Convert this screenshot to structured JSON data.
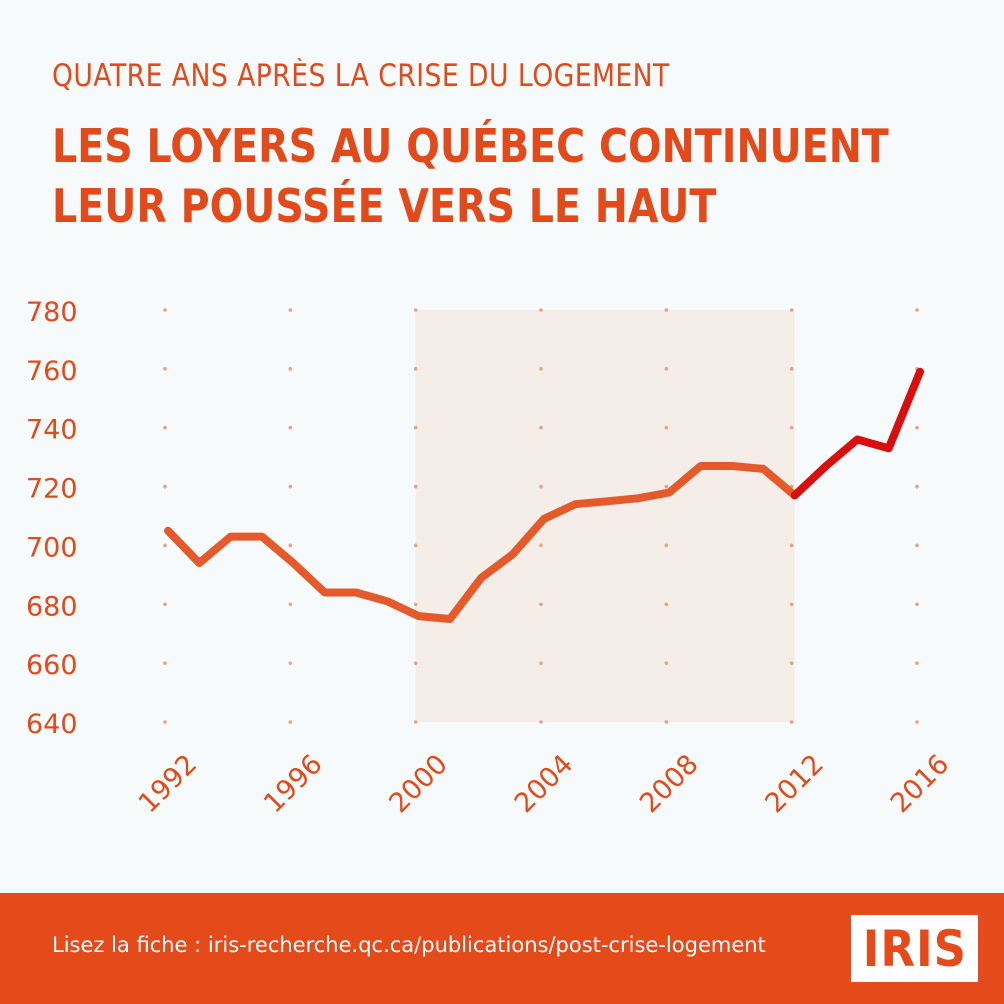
{
  "header": {
    "subtitle": "QUATRE ANS APRÈS LA CRISE DU LOGEMENT",
    "title_line1": "LES LOYERS AU QUÉBEC CONTINUENT",
    "title_line2": "LEUR POUSSÉE VERS LE HAUT"
  },
  "colors": {
    "accent": "#e24a1b",
    "line_main": "#e55a2b",
    "line_recent": "#d90f0f",
    "shaded_band": "#f4ede8",
    "footer_bg": "#e44a1a"
  },
  "chart_data": {
    "type": "line",
    "x_ticks": [
      "1992",
      "1996",
      "2000",
      "2004",
      "2008",
      "2012",
      "2016"
    ],
    "y_ticks": [
      "780",
      "760",
      "740",
      "720",
      "700",
      "680",
      "660",
      "640"
    ],
    "ylim": [
      640,
      780
    ],
    "xlim": [
      1992,
      2016
    ],
    "grid": "dotted",
    "shaded_region": [
      2000,
      2012
    ],
    "series": [
      {
        "x": [
          1992,
          1993,
          1994,
          1995,
          1996,
          1997,
          1998,
          1999,
          2000,
          2001,
          2002,
          2003,
          2004,
          2005,
          2006,
          2007,
          2008,
          2009,
          2010,
          2011,
          2012
        ],
        "values": [
          705,
          694,
          703,
          703,
          694,
          684,
          684,
          681,
          676,
          675,
          689,
          697,
          709,
          714,
          715,
          716,
          718,
          727,
          727,
          726,
          717
        ],
        "color": "#e55a2b"
      },
      {
        "x": [
          2012,
          2013,
          2014,
          2015,
          2016
        ],
        "values": [
          717,
          727,
          736,
          733,
          759
        ],
        "color": "#d90f0f"
      }
    ]
  },
  "footer": {
    "link_text": "Lisez la fiche : iris-recherche.qc.ca/publications/post-crise-logement",
    "logo": "IRIS"
  }
}
